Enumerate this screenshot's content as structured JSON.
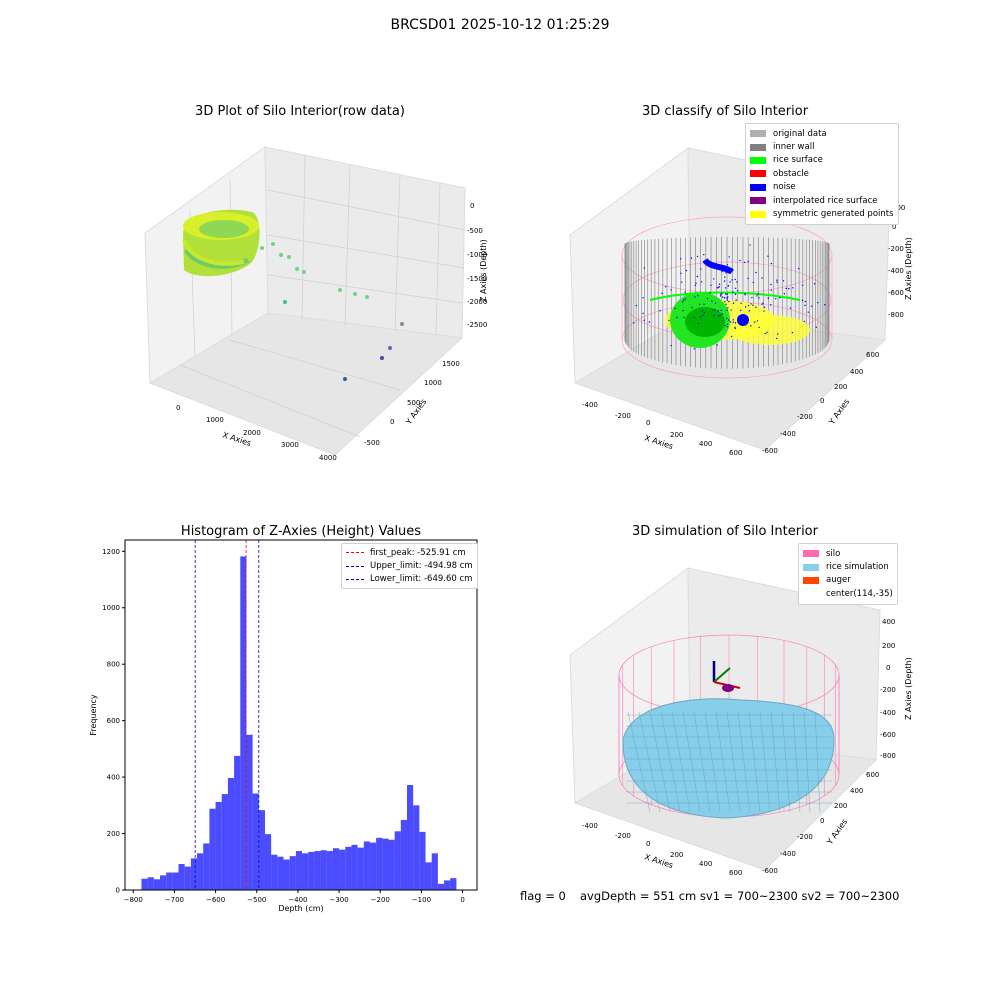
{
  "suptitle": "BRCSD01 2025-10-12 01:25:29",
  "panels": {
    "raw": {
      "title": "3D Plot of Silo Interior(row data)",
      "xlabel": "X Axies",
      "ylabel": "Y Axies",
      "zlabel": "Z Axies (Depth)",
      "xticks": [
        "0",
        "1000",
        "2000",
        "3000",
        "4000"
      ],
      "yticks": [
        "-500",
        "0",
        "500",
        "1000",
        "1500"
      ],
      "zticks": [
        "0",
        "-500",
        "-1000",
        "-1500",
        "-2000",
        "-2500"
      ]
    },
    "classify": {
      "title": "3D classify of Silo Interior",
      "xlabel": "X Axies",
      "ylabel": "Y Axies",
      "zlabel": "Z Axies (Depth)",
      "xticks": [
        "-400",
        "-200",
        "0",
        "200",
        "400",
        "600"
      ],
      "yticks": [
        "-600",
        "-400",
        "-200",
        "0",
        "200",
        "400",
        "600"
      ],
      "zticks": [
        "200",
        "0",
        "-200",
        "-400",
        "-600",
        "-800"
      ],
      "legend": [
        {
          "label": "original data",
          "color": "#b0b0b0"
        },
        {
          "label": "inner wall",
          "color": "#808080"
        },
        {
          "label": "rice surface",
          "color": "#00ff00"
        },
        {
          "label": "obstacle",
          "color": "#ff0000"
        },
        {
          "label": "noise",
          "color": "#0000ff"
        },
        {
          "label": "interpolated rice surface",
          "color": "#800080"
        },
        {
          "label": "symmetric generated points",
          "color": "#ffff00"
        }
      ]
    },
    "simulation": {
      "title": "3D simulation of Silo Interior",
      "xlabel": "X Axies",
      "ylabel": "Y Axies",
      "zlabel": "Z Axies (Depth)",
      "xticks": [
        "-400",
        "-200",
        "0",
        "200",
        "400",
        "600"
      ],
      "yticks": [
        "-600",
        "-400",
        "-200",
        "0",
        "200",
        "400",
        "600"
      ],
      "zticks": [
        "400",
        "200",
        "0",
        "-200",
        "-400",
        "-600",
        "-800"
      ],
      "legend": [
        {
          "label": "silo",
          "color": "#ff69b4"
        },
        {
          "label": "rice simulation",
          "color": "#87ceeb"
        },
        {
          "label": "auger",
          "color": "#ff4500"
        },
        {
          "label": "center(114,-35)",
          "color": null
        }
      ]
    }
  },
  "footer": {
    "flag": "flag = 0",
    "avg": "avgDepth = 551 cm  sv1 = 700~2300  sv2 = 700~2300"
  },
  "chart_data": {
    "type": "bar",
    "title": "Histogram of Z-Axies (Height) Values",
    "xlabel": "Depth (cm)",
    "ylabel": "Frequency",
    "xlim": [
      -820,
      35
    ],
    "ylim": [
      0,
      1240
    ],
    "xticks": [
      -800,
      -700,
      -600,
      -500,
      -400,
      -300,
      -200,
      -100,
      0
    ],
    "yticks": [
      0,
      200,
      400,
      600,
      800,
      1000,
      1200
    ],
    "bar_color": "#0000ff",
    "bins": [
      [
        -780,
        -765,
        40
      ],
      [
        -765,
        -750,
        45
      ],
      [
        -750,
        -735,
        38
      ],
      [
        -735,
        -720,
        52
      ],
      [
        -720,
        -705,
        62
      ],
      [
        -705,
        -690,
        62
      ],
      [
        -690,
        -675,
        92
      ],
      [
        -675,
        -660,
        83
      ],
      [
        -660,
        -645,
        112
      ],
      [
        -645,
        -630,
        130
      ],
      [
        -630,
        -615,
        165
      ],
      [
        -615,
        -600,
        288
      ],
      [
        -600,
        -585,
        312
      ],
      [
        -585,
        -570,
        340
      ],
      [
        -570,
        -555,
        397
      ],
      [
        -555,
        -540,
        475
      ],
      [
        -540,
        -525,
        1182
      ],
      [
        -525,
        -510,
        550
      ],
      [
        -510,
        -495,
        342
      ],
      [
        -495,
        -480,
        283
      ],
      [
        -480,
        -465,
        198
      ],
      [
        -465,
        -450,
        125
      ],
      [
        -450,
        -435,
        118
      ],
      [
        -435,
        -420,
        108
      ],
      [
        -420,
        -405,
        120
      ],
      [
        -405,
        -390,
        138
      ],
      [
        -390,
        -375,
        130
      ],
      [
        -375,
        -360,
        135
      ],
      [
        -360,
        -345,
        138
      ],
      [
        -345,
        -330,
        141
      ],
      [
        -330,
        -315,
        138
      ],
      [
        -315,
        -300,
        148
      ],
      [
        -300,
        -285,
        143
      ],
      [
        -285,
        -270,
        153
      ],
      [
        -270,
        -255,
        160
      ],
      [
        -255,
        -240,
        150
      ],
      [
        -240,
        -225,
        172
      ],
      [
        -225,
        -210,
        168
      ],
      [
        -210,
        -195,
        185
      ],
      [
        -195,
        -180,
        182
      ],
      [
        -180,
        -165,
        178
      ],
      [
        -165,
        -150,
        208
      ],
      [
        -150,
        -135,
        248
      ],
      [
        -135,
        -120,
        372
      ],
      [
        -120,
        -105,
        300
      ],
      [
        -105,
        -90,
        206
      ],
      [
        -90,
        -75,
        98
      ],
      [
        -75,
        -60,
        130
      ],
      [
        -60,
        -45,
        22
      ],
      [
        -45,
        -30,
        34
      ],
      [
        -30,
        -15,
        42
      ]
    ],
    "lines": [
      {
        "label": "first_peak: -525.91 cm",
        "x": -525.91,
        "color": "#ff0000"
      },
      {
        "label": "Upper_limit: -494.98 cm",
        "x": -494.98,
        "color": "#0000cc"
      },
      {
        "label": "Lower_limit: -649.60 cm",
        "x": -649.6,
        "color": "#0000cc"
      }
    ],
    "legend_position": "top-right"
  }
}
